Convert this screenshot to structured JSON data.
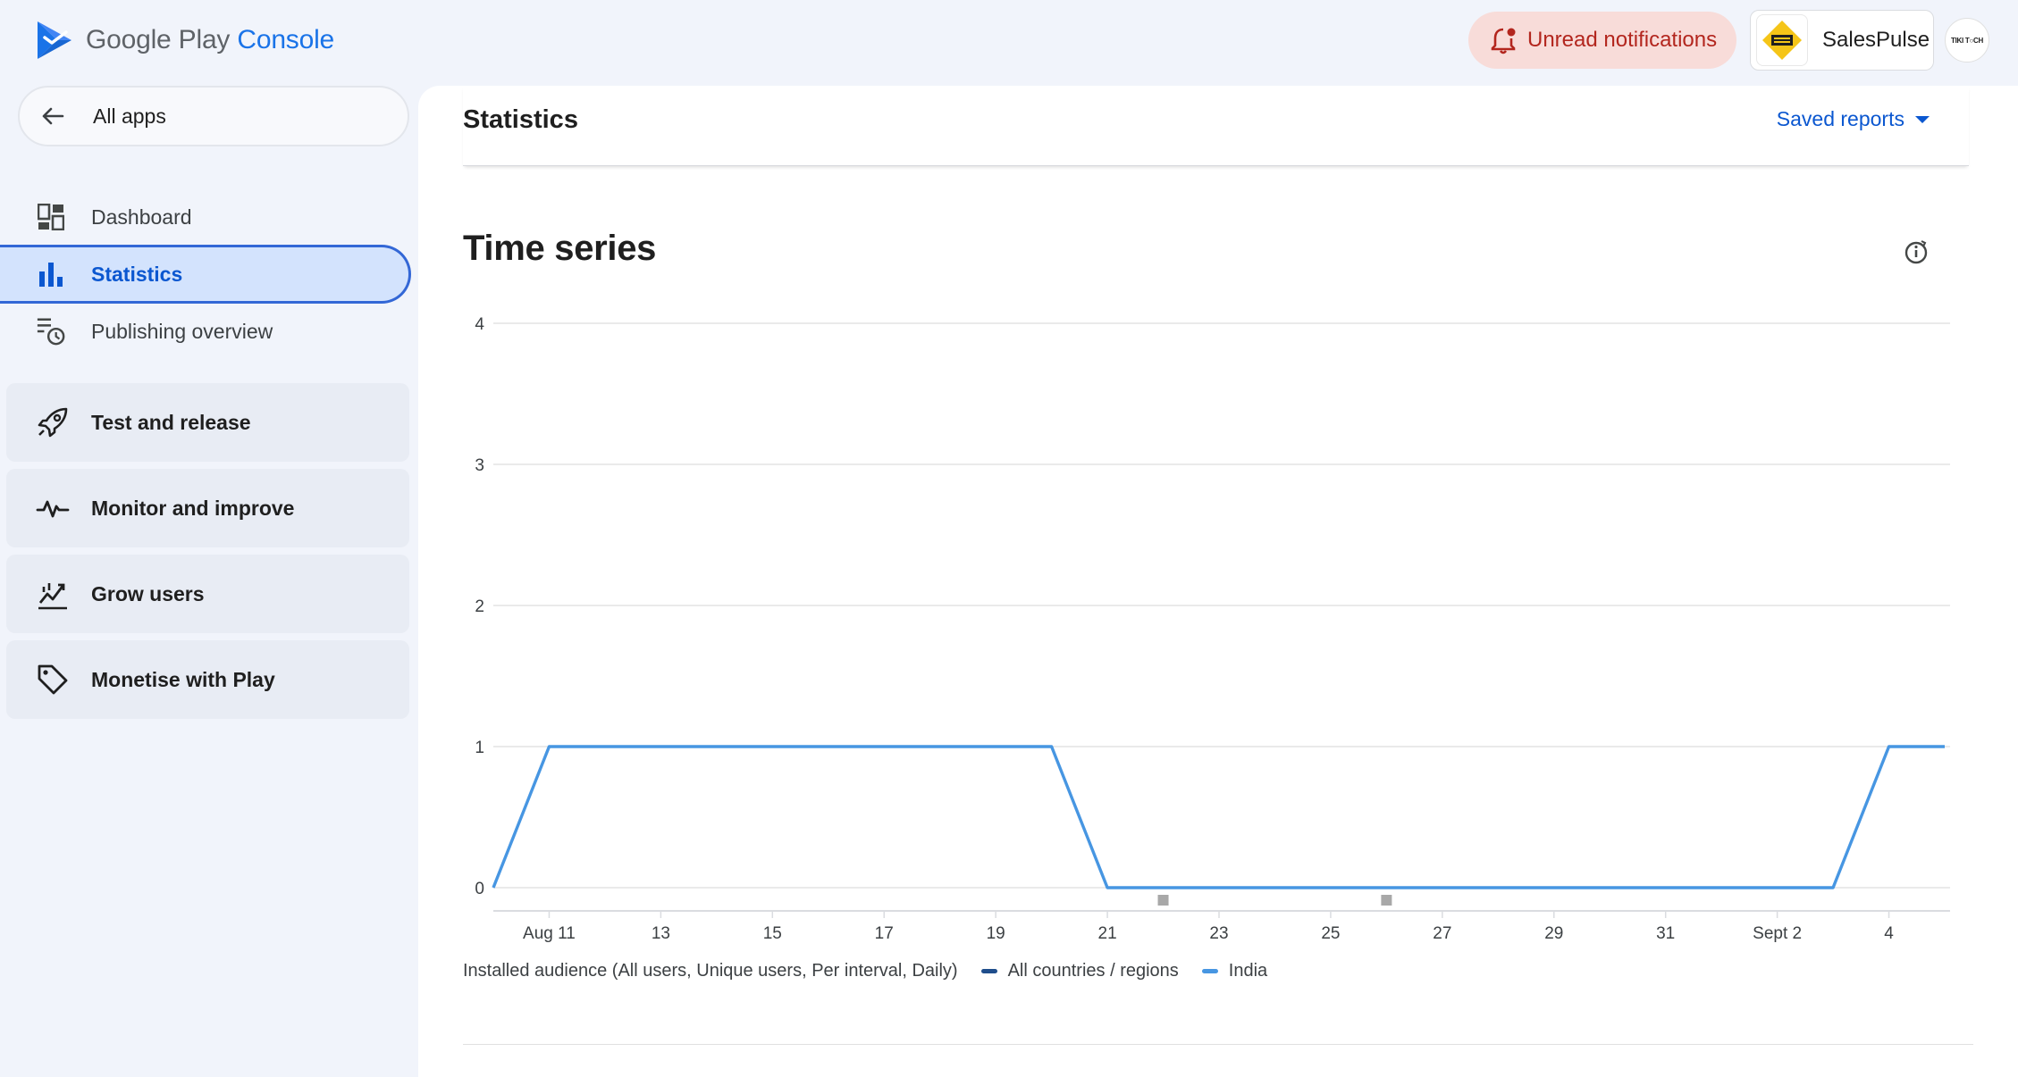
{
  "app": {
    "brand_google_play": "Google Play",
    "brand_console": "Console"
  },
  "header": {
    "notifications_label": "Unread notifications",
    "account_name": "SalesPulse",
    "avatar_text": "TIKI T○CH"
  },
  "sidebar": {
    "all_apps_label": "All apps",
    "items": [
      {
        "label": "Dashboard",
        "icon": "dashboard-icon"
      },
      {
        "label": "Statistics",
        "icon": "bar-chart-icon",
        "active": true
      },
      {
        "label": "Publishing overview",
        "icon": "publishing-icon"
      }
    ],
    "sections": [
      {
        "label": "Test and release",
        "icon": "rocket-icon"
      },
      {
        "label": "Monitor and improve",
        "icon": "pulse-icon"
      },
      {
        "label": "Grow users",
        "icon": "growth-icon"
      },
      {
        "label": "Monetise with Play",
        "icon": "tag-icon"
      }
    ]
  },
  "main": {
    "page_title": "Statistics",
    "saved_reports_label": "Saved reports",
    "section_title": "Time series",
    "legend": {
      "metric_label": "Installed audience (All users, Unique users, Per interval, Daily)",
      "series": [
        {
          "name": "All countries / regions",
          "color": "#1f4e8c"
        },
        {
          "name": "India",
          "color": "#4796e2"
        }
      ]
    }
  },
  "chart_data": {
    "type": "line",
    "title": "",
    "xlabel": "",
    "ylabel": "",
    "ylim": [
      0,
      4
    ],
    "y_ticks": [
      "0",
      "1",
      "2",
      "3",
      "4"
    ],
    "x_tick_labels": [
      "Aug 11",
      "13",
      "15",
      "17",
      "19",
      "21",
      "23",
      "25",
      "27",
      "29",
      "31",
      "Sept 2",
      "4"
    ],
    "x": [
      "Aug 10",
      "Aug 11",
      "Aug 12",
      "Aug 13",
      "Aug 14",
      "Aug 15",
      "Aug 16",
      "Aug 17",
      "Aug 18",
      "Aug 19",
      "Aug 20",
      "Aug 21",
      "Aug 22",
      "Aug 23",
      "Aug 24",
      "Aug 25",
      "Aug 26",
      "Aug 27",
      "Aug 28",
      "Aug 29",
      "Aug 30",
      "Aug 31",
      "Sept 1",
      "Sept 2",
      "Sept 3",
      "Sept 4",
      "Sept 5"
    ],
    "series": [
      {
        "name": "India",
        "color": "#4796e2",
        "values": [
          0,
          1,
          1,
          1,
          1,
          1,
          1,
          1,
          1,
          1,
          1,
          0,
          0,
          0,
          0,
          0,
          0,
          0,
          0,
          0,
          0,
          0,
          0,
          0,
          0,
          1,
          1
        ]
      }
    ],
    "annotation_markers_x": [
      "Aug 22",
      "Aug 26"
    ],
    "grid": true,
    "legend_position": "bottom-left"
  }
}
